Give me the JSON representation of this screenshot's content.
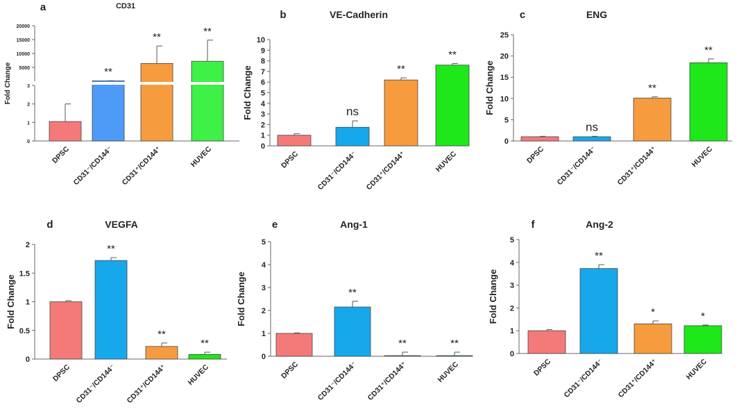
{
  "chart_data": [
    {
      "panel": "a",
      "type": "bar",
      "title": "CD31",
      "ylabel": "Fold Change",
      "broken_axis": true,
      "ylim_lower": [
        0,
        3
      ],
      "yticks_lower": [
        "0",
        "1",
        "2",
        "3"
      ],
      "ylim_upper": [
        0,
        20000
      ],
      "yticks_upper": [
        "5000",
        "10000",
        "15000",
        "20000"
      ],
      "categories": [
        "DPSC",
        "CD31⁻/CD144⁻",
        "CD31⁺/CD144⁺",
        "HUVEC"
      ],
      "values": [
        1.05,
        160,
        6400,
        7200
      ],
      "errors": [
        0.95,
        40,
        6300,
        7600
      ],
      "significance": [
        "",
        "**",
        "**",
        "**"
      ],
      "colors": [
        "#f47a7a",
        "#4d9bf7",
        "#f79b3f",
        "#3ff046"
      ]
    },
    {
      "panel": "b",
      "type": "bar",
      "title": "VE-Cadherin",
      "ylabel": "Fold Change",
      "ylim": [
        0,
        10
      ],
      "yticks": [
        "0",
        "1",
        "2",
        "3",
        "4",
        "5",
        "6",
        "7",
        "8",
        "9",
        "10"
      ],
      "categories": [
        "DPSC",
        "CD31⁻/CD144⁻",
        "CD31⁺/CD144⁺",
        "HUVEC"
      ],
      "values": [
        1.0,
        1.75,
        6.2,
        7.6
      ],
      "errors": [
        0.15,
        0.6,
        0.2,
        0.15
      ],
      "significance": [
        "",
        "ns",
        "**",
        "**"
      ],
      "colors": [
        "#f47a7a",
        "#17a8ec",
        "#f79b3f",
        "#1ee81a"
      ]
    },
    {
      "panel": "c",
      "type": "bar",
      "title": "ENG",
      "ylabel": "Fold Change",
      "ylim": [
        0,
        25
      ],
      "yticks": [
        "0",
        "5",
        "10",
        "15",
        "20",
        "25"
      ],
      "categories": [
        "DPSC",
        "CD31⁻/CD144⁻",
        "CD31⁺/CD144⁺",
        "HUVEC"
      ],
      "values": [
        1.0,
        1.0,
        10.1,
        18.4
      ],
      "errors": [
        0.1,
        0.1,
        0.3,
        0.9
      ],
      "significance": [
        "",
        "ns",
        "**",
        "**"
      ],
      "colors": [
        "#f47a7a",
        "#17a8ec",
        "#f79b3f",
        "#1ee81a"
      ]
    },
    {
      "panel": "d",
      "type": "bar",
      "title": "VEGFA",
      "ylabel": "Fold Change",
      "ylim": [
        0,
        2
      ],
      "yticks": [
        "0",
        "0.5",
        "1",
        "1.5",
        "2"
      ],
      "categories": [
        "DPSC",
        "CD31⁻/CD144⁻",
        "CD31⁺/CD144⁺",
        "HUVEC"
      ],
      "values": [
        1.0,
        1.72,
        0.22,
        0.08
      ],
      "errors": [
        0.02,
        0.05,
        0.06,
        0.04
      ],
      "significance": [
        "",
        "**",
        "**",
        "**"
      ],
      "colors": [
        "#f47a7a",
        "#17a8ec",
        "#f79b3f",
        "#1ee81a"
      ]
    },
    {
      "panel": "e",
      "type": "bar",
      "title": "Ang-1",
      "ylabel": "Fold Change",
      "ylim": [
        0,
        5
      ],
      "yticks": [
        "0",
        "1",
        "2",
        "3",
        "4",
        "5"
      ],
      "categories": [
        "DPSC",
        "CD31⁻/CD144⁻",
        "CD31⁺/CD144⁺",
        "HUVEC"
      ],
      "values": [
        1.0,
        2.15,
        0.03,
        0.03
      ],
      "errors": [
        0.02,
        0.25,
        0.15,
        0.15
      ],
      "significance": [
        "",
        "**",
        "**",
        "**"
      ],
      "colors": [
        "#f47a7a",
        "#17a8ec",
        "#f79b3f",
        "#1ee81a"
      ]
    },
    {
      "panel": "f",
      "type": "bar",
      "title": "Ang-2",
      "ylabel": "Fold Change",
      "ylim": [
        0,
        5
      ],
      "yticks": [
        "0",
        "1",
        "2",
        "3",
        "4",
        "5"
      ],
      "categories": [
        "DPSC",
        "CD31⁻/CD144⁻",
        "CD31⁺/CD144⁺",
        "HUVEC"
      ],
      "values": [
        1.0,
        3.73,
        1.3,
        1.22
      ],
      "errors": [
        0.05,
        0.17,
        0.13,
        0.03
      ],
      "significance": [
        "",
        "**",
        "*",
        "*"
      ],
      "colors": [
        "#f47a7a",
        "#17a8ec",
        "#f79b3f",
        "#1ee81a"
      ]
    }
  ]
}
